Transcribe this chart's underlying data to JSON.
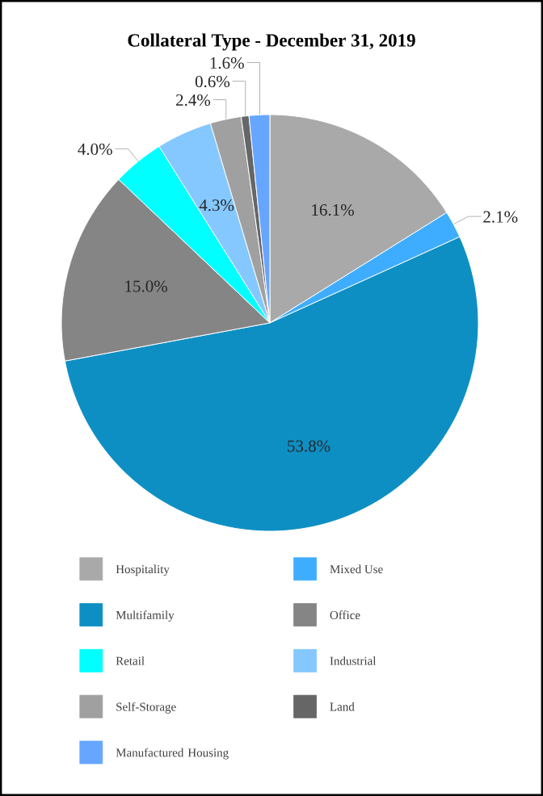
{
  "chart_data": {
    "type": "pie",
    "title": "Collateral Type - December 31, 2019",
    "categories": [
      "Hospitality",
      "Mixed Use",
      "Multifamily",
      "Office",
      "Retail",
      "Industrial",
      "Self-Storage",
      "Land",
      "Manufactured Housing"
    ],
    "values": [
      16.1,
      2.1,
      53.8,
      15.0,
      4.0,
      4.3,
      2.4,
      0.6,
      1.6
    ],
    "colors": [
      "#a9a9a9",
      "#3fadff",
      "#0e8fc4",
      "#858585",
      "#00ffff",
      "#85c8ff",
      "#a0a0a0",
      "#666666",
      "#66a6ff"
    ],
    "value_labels": [
      "16.1%",
      "2.1%",
      "53.8%",
      "15.0%",
      "4.0%",
      "4.3%",
      "2.4%",
      "0.6%",
      "1.6%"
    ],
    "legend": "bottom"
  }
}
